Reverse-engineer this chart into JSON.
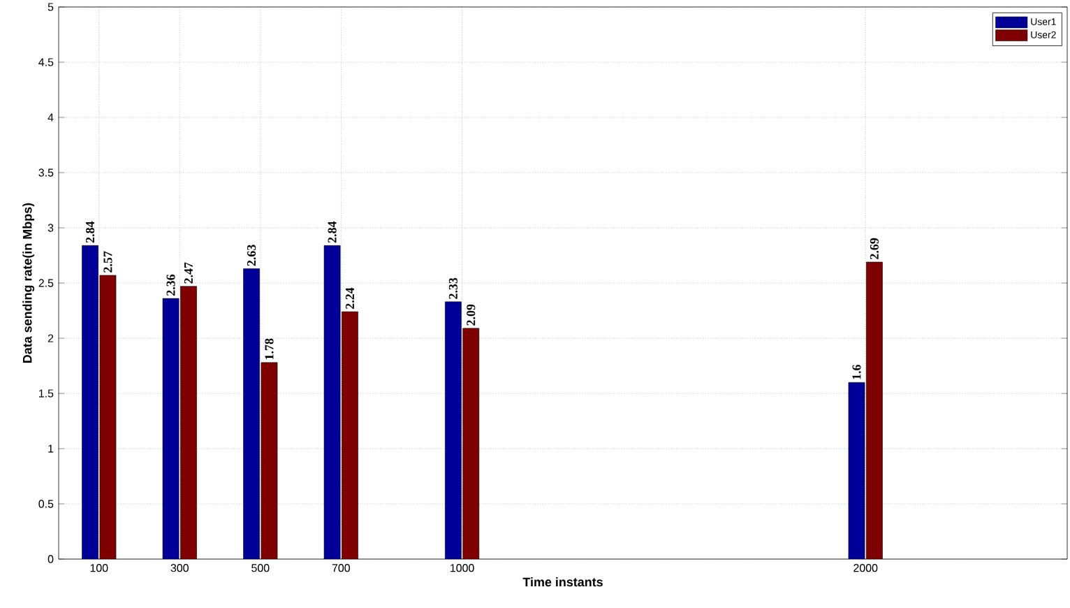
{
  "chart_data": {
    "type": "bar",
    "xlabel": "Time instants",
    "ylabel": "Data sending rate(in Mbps)",
    "x": [
      100,
      300,
      500,
      700,
      1000,
      2000
    ],
    "series": [
      {
        "name": "User1",
        "color": "#000099",
        "values": [
          2.84,
          2.36,
          2.63,
          2.84,
          2.33,
          1.6
        ]
      },
      {
        "name": "User2",
        "color": "#7f0000",
        "values": [
          2.57,
          2.47,
          1.78,
          2.24,
          2.09,
          2.69
        ]
      }
    ],
    "xlim": [
      0,
      2500
    ],
    "xticks": [
      100,
      300,
      500,
      700,
      1000,
      2000
    ],
    "ylim": [
      0,
      5
    ],
    "yticks": [
      0,
      0.5,
      1,
      1.5,
      2,
      2.5,
      3,
      3.5,
      4,
      4.5,
      5
    ],
    "grid": true,
    "legend": "top right",
    "data_labels": true
  }
}
